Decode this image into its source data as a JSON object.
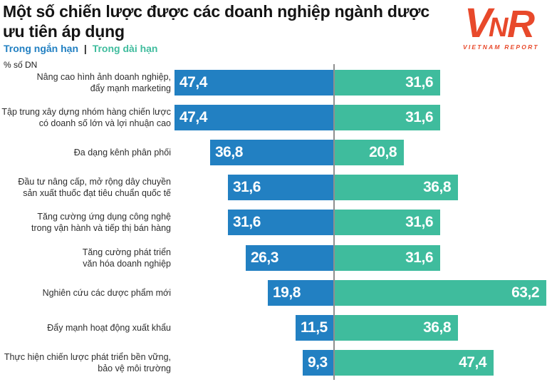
{
  "title": {
    "lines": [
      "Một số chiến lược được các doanh nghiệp ngành dược",
      "ưu tiên áp dụng"
    ]
  },
  "legend": {
    "separator": "|",
    "items": [
      {
        "label": "Trong ngắn hạn",
        "color": "#2280C2"
      },
      {
        "label": "Trong dài hạn",
        "color": "#3FBC9D"
      }
    ]
  },
  "axis_note": "% số DN",
  "logo": {
    "letters": [
      "V",
      "N",
      "R"
    ],
    "subtext": "VIETNAM REPORT",
    "color": "#E8492B"
  },
  "chart_data": {
    "type": "bar",
    "orientation": "horizontal-diverging",
    "title": "Một số chiến lược được các doanh nghiệp ngành dược ưu tiên áp dụng",
    "xlabel": "% số DN",
    "ylabel": "",
    "value_format": "decimal-comma",
    "legend_position": "top-left",
    "grid": false,
    "xlim_left": [
      0,
      48.7
    ],
    "xlim_right": [
      0,
      63.4
    ],
    "categories": [
      "Nâng cao hình ảnh doanh nghiệp,\nđẩy mạnh marketing",
      "Tập trung xây dựng nhóm hàng chiến lược\ncó doanh số lớn và lợi nhuận cao",
      "Đa dạng kênh phân phối",
      "Đầu tư nâng cấp, mở rộng dây chuyền\nsản xuất thuốc đạt tiêu chuẩn quốc tế",
      "Tăng cường ứng dụng công nghệ\ntrong vận hành và tiếp thị bán hàng",
      "Tăng cường phát triển\nvăn hóa doanh nghiệp",
      "Nghiên cứu các dược phẩm mới",
      "Đẩy mạnh hoạt động xuất khẩu",
      "Thực hiện chiến lược phát triển bền vững,\nbảo vệ môi trường"
    ],
    "series": [
      {
        "name": "Trong ngắn hạn",
        "color": "#2280C2",
        "values": [
          47.4,
          47.4,
          36.8,
          31.6,
          31.6,
          26.3,
          19.8,
          11.5,
          9.3
        ]
      },
      {
        "name": "Trong dài hạn",
        "color": "#3FBC9D",
        "values": [
          31.6,
          31.6,
          20.8,
          36.8,
          31.6,
          31.6,
          63.2,
          36.8,
          47.4
        ]
      }
    ]
  }
}
